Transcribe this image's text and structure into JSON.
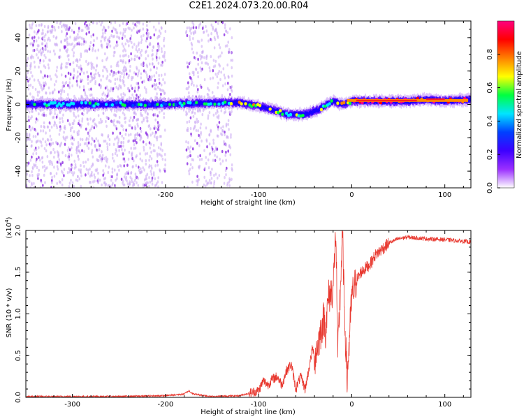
{
  "title": "C2E1.2024.073.20.00.R04",
  "chart_data": [
    {
      "type": "heatmap",
      "title": "C2E1.2024.073.20.00.R04",
      "xlabel": "Height of straight line (km)",
      "ylabel": "Frequency (Hz)",
      "xlim": [
        -350,
        128
      ],
      "ylim": [
        -50,
        50
      ],
      "xticks": [
        -300,
        -200,
        -100,
        0,
        100
      ],
      "yticks": [
        -40,
        -20,
        0,
        20,
        40
      ],
      "colorbar": {
        "label": "Normalized spectral amplitude",
        "range": [
          0,
          1
        ],
        "ticks": [
          "0.0",
          "0.2",
          "0.4",
          "0.6",
          "0.8"
        ],
        "colors": [
          "#ffffff",
          "#9b30ff",
          "#3d00ff",
          "#0040ff",
          "#00e5ff",
          "#00ff40",
          "#ffff00",
          "#ff8000",
          "#ff0000",
          "#ff0080"
        ]
      },
      "ridge": [
        {
          "x": -350,
          "f": 0
        },
        {
          "x": -200,
          "f": 0
        },
        {
          "x": -150,
          "f": 1
        },
        {
          "x": -120,
          "f": 1
        },
        {
          "x": -100,
          "f": -1
        },
        {
          "x": -80,
          "f": -4
        },
        {
          "x": -70,
          "f": -6
        },
        {
          "x": -50,
          "f": -6
        },
        {
          "x": -35,
          "f": -3
        },
        {
          "x": -20,
          "f": 2
        },
        {
          "x": -10,
          "f": 0
        },
        {
          "x": 0,
          "f": 2
        },
        {
          "x": 60,
          "f": 2
        },
        {
          "x": 80,
          "f": 3
        },
        {
          "x": 100,
          "f": 2
        },
        {
          "x": 128,
          "f": 3
        }
      ]
    },
    {
      "type": "line",
      "xlabel": "Height of straight line (km)",
      "ylabel": "SNR (10 * v/v)",
      "y_exponent_label": "(x10",
      "y_exponent": "4",
      "y_exponent_close": ")",
      "xlim": [
        -350,
        128
      ],
      "ylim": [
        0,
        2.0
      ],
      "xticks": [
        -300,
        -200,
        -100,
        0,
        100
      ],
      "yticks": [
        "0.0",
        "0.5",
        "1.0",
        "1.5",
        "2.0"
      ],
      "color": "#e8382f",
      "series": [
        {
          "x": [
            -350,
            -300,
            -250,
            -200,
            -180,
            -175,
            -170,
            -150,
            -120,
            -110,
            -100,
            -95,
            -90,
            -85,
            -80,
            -75,
            -70,
            -65,
            -60,
            -55,
            -50,
            -45,
            -42,
            -40,
            -35,
            -30,
            -28,
            -25,
            -20,
            -17,
            -15,
            -12,
            -10,
            -8,
            -5,
            0,
            5,
            10,
            20,
            25,
            30,
            40,
            50,
            60,
            80,
            100,
            120,
            128
          ],
          "y": [
            0.01,
            0.01,
            0.01,
            0.02,
            0.04,
            0.08,
            0.04,
            0.01,
            0.02,
            0.05,
            0.08,
            0.2,
            0.15,
            0.22,
            0.25,
            0.15,
            0.32,
            0.4,
            0.1,
            0.25,
            0.1,
            0.4,
            0.6,
            0.45,
            0.7,
            0.95,
            0.8,
            1.2,
            1.3,
            2.0,
            0.5,
            1.35,
            2.0,
            1.1,
            0.2,
            1.2,
            1.4,
            1.5,
            1.6,
            1.7,
            1.75,
            1.85,
            1.9,
            1.92,
            1.9,
            1.89,
            1.87,
            1.86
          ]
        }
      ]
    }
  ]
}
